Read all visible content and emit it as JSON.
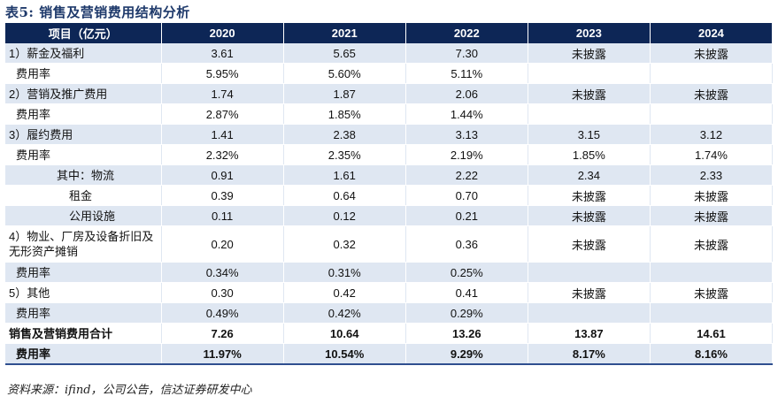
{
  "caption": "表5: 销售及营销费用结构分析",
  "table": {
    "headers": [
      "项目（亿元）",
      "2020",
      "2021",
      "2022",
      "2023",
      "2024"
    ],
    "rows": [
      [
        "1）薪金及福利",
        "3.61",
        "5.65",
        "7.30",
        "未披露",
        "未披露"
      ],
      [
        "费用率",
        "5.95%",
        "5.60%",
        "5.11%",
        "",
        ""
      ],
      [
        "2）营销及推广费用",
        "1.74",
        "1.87",
        "2.06",
        "未披露",
        "未披露"
      ],
      [
        "费用率",
        "2.87%",
        "1.85%",
        "1.44%",
        "",
        ""
      ],
      [
        "3）履约费用",
        "1.41",
        "2.38",
        "3.13",
        "3.15",
        "3.12"
      ],
      [
        "费用率",
        "2.32%",
        "2.35%",
        "2.19%",
        "1.85%",
        "1.74%"
      ],
      [
        "其中：物流",
        "0.91",
        "1.61",
        "2.22",
        "2.34",
        "2.33"
      ],
      [
        "租金",
        "0.39",
        "0.64",
        "0.70",
        "未披露",
        "未披露"
      ],
      [
        "公用设施",
        "0.11",
        "0.12",
        "0.21",
        "未披露",
        "未披露"
      ],
      [
        "4）物业、厂房及设备折旧及无形资产摊销",
        "0.20",
        "0.32",
        "0.36",
        "未披露",
        "未披露"
      ],
      [
        "费用率",
        "0.34%",
        "0.31%",
        "0.25%",
        "",
        ""
      ],
      [
        "5）其他",
        "0.30",
        "0.42",
        "0.41",
        "未披露",
        "未披露"
      ],
      [
        "费用率",
        "0.49%",
        "0.42%",
        "0.29%",
        "",
        ""
      ],
      [
        "销售及营销费用合计",
        "7.26",
        "10.64",
        "13.26",
        "13.87",
        "14.61"
      ],
      [
        "费用率",
        "11.97%",
        "10.54%",
        "9.29%",
        "8.17%",
        "8.16%"
      ]
    ]
  },
  "source": "资料来源：ifind，公司公告，信达证券研发中心",
  "colors": {
    "header_bg": "#0d2656",
    "band_bg": "#dfe7f2",
    "caption": "#1f3a6b"
  }
}
